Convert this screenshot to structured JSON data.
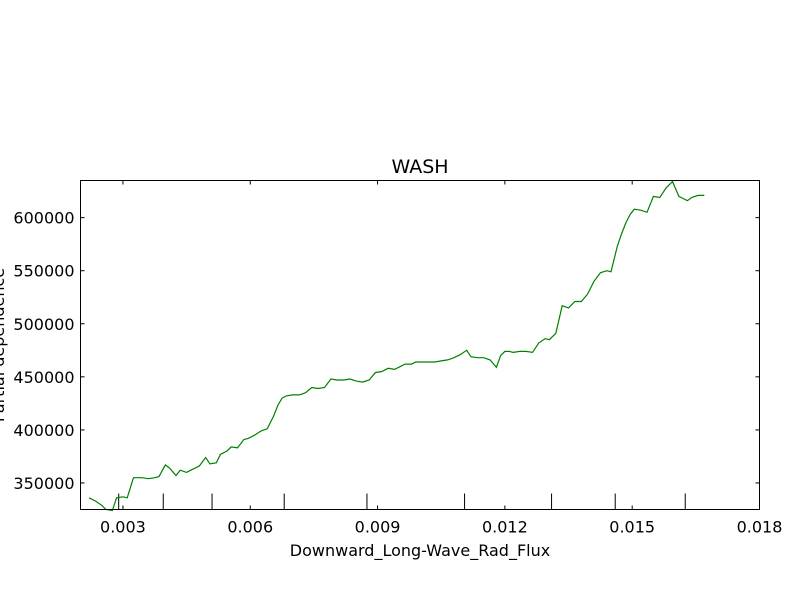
{
  "chart_data": {
    "type": "line",
    "title": "WASH",
    "xlabel": "Downward_Long-Wave_Rad_Flux",
    "ylabel": "Partial dependence",
    "xlim": [
      0.002,
      0.018
    ],
    "ylim": [
      325000,
      635000
    ],
    "x_ticks": [
      0.003,
      0.006,
      0.009,
      0.012,
      0.015,
      0.018
    ],
    "x_tick_labels": [
      "0.003",
      "0.006",
      "0.009",
      "0.012",
      "0.015",
      "0.018"
    ],
    "y_ticks": [
      350000,
      400000,
      450000,
      500000,
      550000,
      600000
    ],
    "y_tick_labels": [
      "350000",
      "400000",
      "450000",
      "500000",
      "550000",
      "600000"
    ],
    "rug_x": [
      0.0029,
      0.00395,
      0.0051,
      0.0068,
      0.00875,
      0.01105,
      0.0131,
      0.0146,
      0.01625
    ],
    "grid": false,
    "series": [
      {
        "color": "#008000",
        "x": [
          0.0022,
          0.00235,
          0.0025,
          0.0026,
          0.00275,
          0.00285,
          0.003,
          0.0031,
          0.00325,
          0.00345,
          0.0036,
          0.00375,
          0.00385,
          0.004,
          0.0041,
          0.00425,
          0.00435,
          0.0045,
          0.0046,
          0.0048,
          0.00495,
          0.00505,
          0.0052,
          0.0053,
          0.00545,
          0.00555,
          0.0057,
          0.00585,
          0.00595,
          0.0061,
          0.00625,
          0.0064,
          0.00655,
          0.00665,
          0.00675,
          0.00685,
          0.007,
          0.00715,
          0.0073,
          0.00745,
          0.0076,
          0.00775,
          0.0079,
          0.00805,
          0.0082,
          0.00835,
          0.0085,
          0.00865,
          0.0088,
          0.00895,
          0.0091,
          0.00925,
          0.0094,
          0.0095,
          0.00965,
          0.0098,
          0.0099,
          0.01005,
          0.0102,
          0.01035,
          0.0105,
          0.01065,
          0.0108,
          0.01095,
          0.0111,
          0.0112,
          0.01135,
          0.0115,
          0.01165,
          0.0118,
          0.0119,
          0.012,
          0.0121,
          0.0122,
          0.01235,
          0.0125,
          0.01265,
          0.0128,
          0.01295,
          0.01305,
          0.0132,
          0.01335,
          0.0135,
          0.01365,
          0.0138,
          0.01395,
          0.0141,
          0.01425,
          0.0144,
          0.0145,
          0.01465,
          0.01475,
          0.01485,
          0.01495,
          0.01505,
          0.0152,
          0.01535,
          0.0155,
          0.01565,
          0.0158,
          0.01595,
          0.0161,
          0.0162,
          0.0163,
          0.0164,
          0.01655,
          0.0167
        ],
        "y": [
          336000,
          333000,
          329000,
          325000,
          324000,
          336000,
          337000,
          336000,
          355000,
          355000,
          354000,
          355000,
          356000,
          367000,
          364000,
          357000,
          362000,
          360000,
          362000,
          366000,
          374000,
          368000,
          369000,
          377000,
          380000,
          384000,
          383000,
          391000,
          392000,
          395000,
          399000,
          401000,
          413000,
          423000,
          430000,
          432000,
          433000,
          433000,
          435000,
          440000,
          439000,
          440000,
          448000,
          447000,
          447000,
          448000,
          446000,
          445000,
          447000,
          454000,
          455000,
          458000,
          457000,
          459000,
          462000,
          462000,
          464000,
          464000,
          464000,
          464000,
          465000,
          466000,
          468000,
          471000,
          475000,
          469000,
          468000,
          468000,
          466000,
          459000,
          470000,
          474000,
          474000,
          473000,
          474000,
          474000,
          473000,
          482000,
          486000,
          485000,
          491000,
          517000,
          515000,
          521000,
          521000,
          528000,
          540000,
          548000,
          550000,
          549000,
          573000,
          585000,
          595000,
          603000,
          608000,
          607000,
          605000,
          620000,
          619000,
          628000,
          634000,
          620000,
          618000,
          616000,
          619000,
          621000,
          621000
        ]
      }
    ]
  }
}
